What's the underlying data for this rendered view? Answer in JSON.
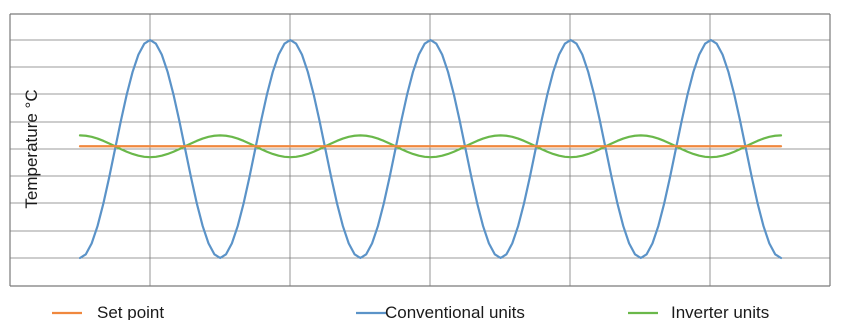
{
  "chart_data": {
    "type": "line",
    "title": "",
    "xlabel": "",
    "ylabel": "Temperature °C",
    "xlim": [
      0,
      1
    ],
    "ylim": [
      0,
      8
    ],
    "grid": true,
    "legend_position": "bottom",
    "series": [
      {
        "name": "Set point",
        "color": "#f0883e",
        "x": [
          0,
          1
        ],
        "y": [
          4.1,
          4.1
        ]
      },
      {
        "name": "Conventional units",
        "color": "#5b93c8",
        "x": [
          0.0,
          0.05,
          0.1,
          0.15,
          0.2,
          0.25,
          0.3,
          0.35,
          0.4,
          0.45,
          0.5,
          0.55,
          0.6,
          0.65,
          0.7,
          0.75,
          0.8,
          0.85,
          0.9,
          0.95,
          1.0
        ],
        "y": [
          0.0,
          4.0,
          8.0,
          4.0,
          0.0,
          4.0,
          8.0,
          4.0,
          0.0,
          4.0,
          8.0,
          4.0,
          0.0,
          4.0,
          8.0,
          4.0,
          0.0,
          4.0,
          8.0,
          4.0,
          0.0
        ]
      },
      {
        "name": "Inverter units",
        "color": "#6ab84a",
        "x": [
          0.0,
          0.05,
          0.1,
          0.15,
          0.2,
          0.25,
          0.3,
          0.35,
          0.4,
          0.45,
          0.5,
          0.55,
          0.6,
          0.65,
          0.7,
          0.75,
          0.8,
          0.85,
          0.9,
          0.95,
          1.0
        ],
        "y": [
          4.5,
          4.1,
          3.7,
          4.1,
          4.5,
          4.1,
          3.7,
          4.1,
          4.5,
          4.1,
          3.7,
          4.1,
          4.5,
          4.1,
          3.7,
          4.1,
          4.5,
          4.1,
          3.7,
          4.1,
          4.5
        ]
      }
    ]
  },
  "colors": {
    "grid": "#7a7a7a",
    "axis": "#3a3a3a"
  }
}
